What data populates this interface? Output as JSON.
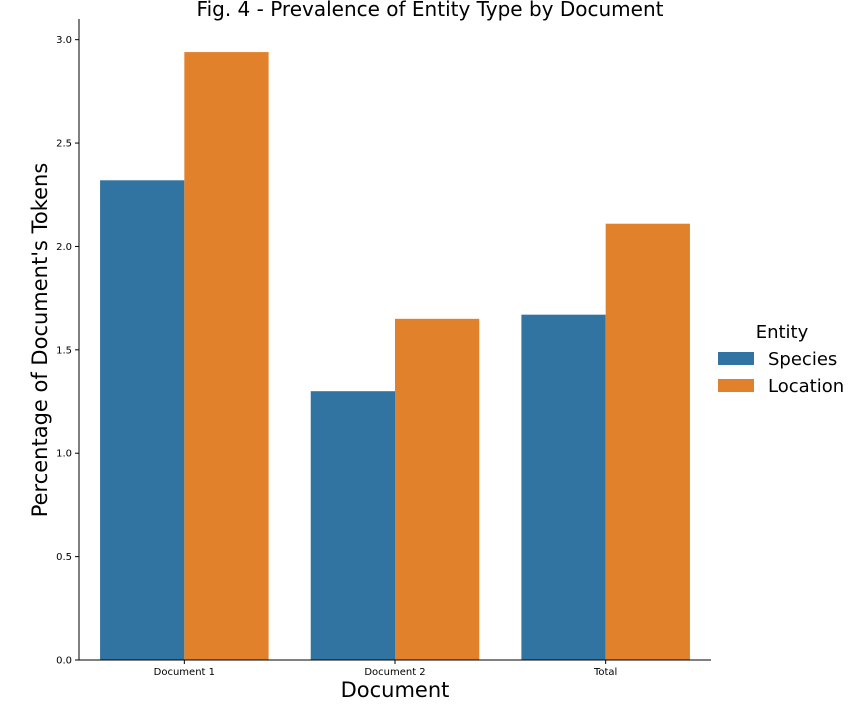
{
  "chart_data": {
    "type": "bar",
    "title": "Fig. 4 - Prevalence of Entity Type by Document",
    "xlabel": "Document",
    "ylabel": "Percentage of Document's Tokens",
    "categories": [
      "Document 1",
      "Document 2",
      "Total"
    ],
    "series": [
      {
        "name": "Species",
        "values": [
          2.32,
          1.3,
          1.67
        ],
        "color": "#3274a1"
      },
      {
        "name": "Location",
        "values": [
          2.94,
          1.65,
          2.11
        ],
        "color": "#e1812c"
      }
    ],
    "ylim": [
      0,
      3.1
    ],
    "yticks": [
      "0.0",
      "0.5",
      "1.0",
      "1.5",
      "2.0",
      "2.5",
      "3.0"
    ],
    "grid": false,
    "legend": {
      "title": "Entity",
      "placement": "right"
    }
  }
}
